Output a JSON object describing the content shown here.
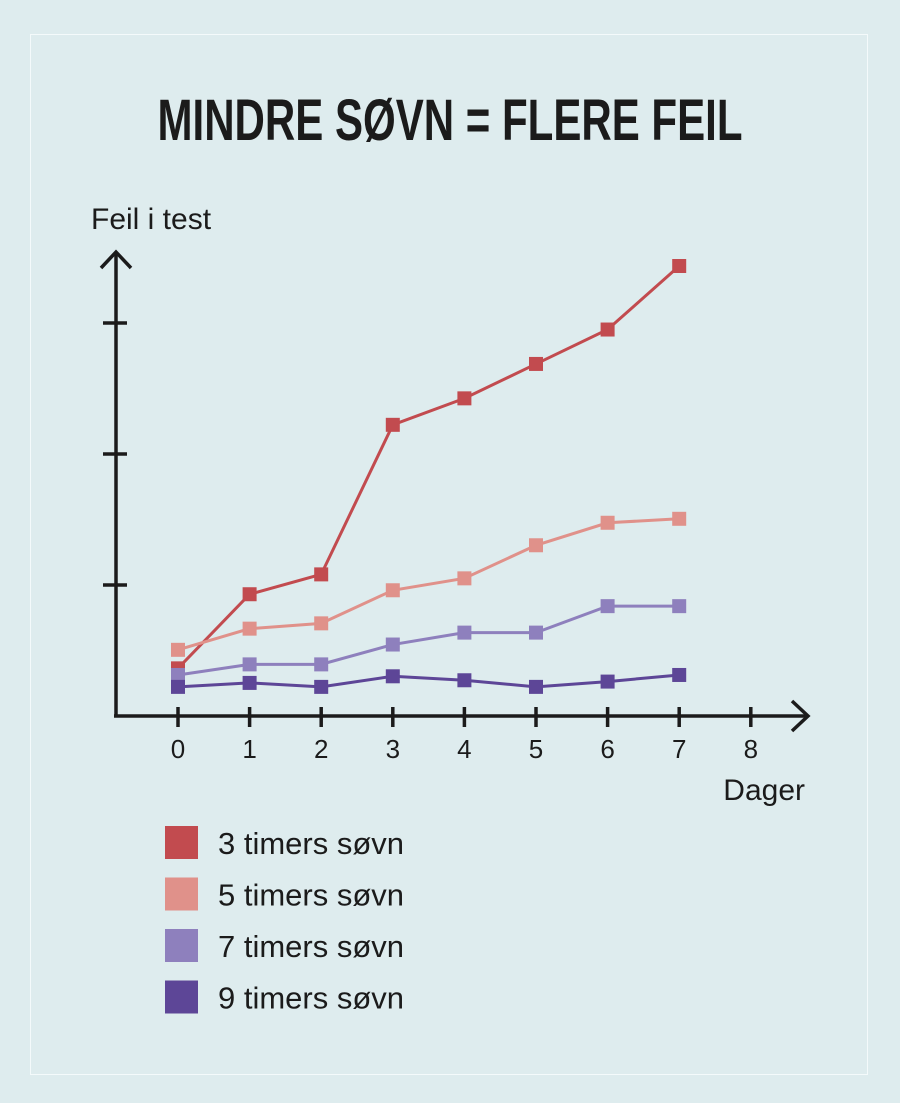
{
  "chart_data": {
    "type": "line",
    "title": "MINDRE SØVN = FLERE FEIL",
    "ylabel": "Feil i test",
    "xlabel": "Dager",
    "x_ticks": [
      "0",
      "1",
      "2",
      "3",
      "4",
      "5",
      "6",
      "7",
      "8"
    ],
    "xlim": [
      0,
      8
    ],
    "ylim": [
      0,
      3.4
    ],
    "y_ticks_count": 3,
    "grid": false,
    "legend_position": "bottom-left",
    "series": [
      {
        "name": "3 timers søvn",
        "color": "#c24b4f",
        "x": [
          0,
          1,
          2,
          3,
          4,
          5,
          6,
          7
        ],
        "values": [
          0.36,
          0.92,
          1.07,
          2.2,
          2.4,
          2.66,
          2.92,
          3.4
        ]
      },
      {
        "name": "5 timers søvn",
        "color": "#e0918a",
        "x": [
          0,
          1,
          2,
          3,
          4,
          5,
          6,
          7
        ],
        "values": [
          0.5,
          0.66,
          0.7,
          0.95,
          1.04,
          1.29,
          1.46,
          1.49
        ]
      },
      {
        "name": "7 timers søvn",
        "color": "#8e80bd",
        "x": [
          0,
          1,
          2,
          3,
          4,
          5,
          6,
          7
        ],
        "values": [
          0.31,
          0.39,
          0.39,
          0.54,
          0.63,
          0.63,
          0.83,
          0.83
        ]
      },
      {
        "name": "9 timers søvn",
        "color": "#5d4697",
        "x": [
          0,
          1,
          2,
          3,
          4,
          5,
          6,
          7
        ],
        "values": [
          0.22,
          0.25,
          0.22,
          0.3,
          0.27,
          0.22,
          0.26,
          0.31
        ]
      }
    ]
  }
}
